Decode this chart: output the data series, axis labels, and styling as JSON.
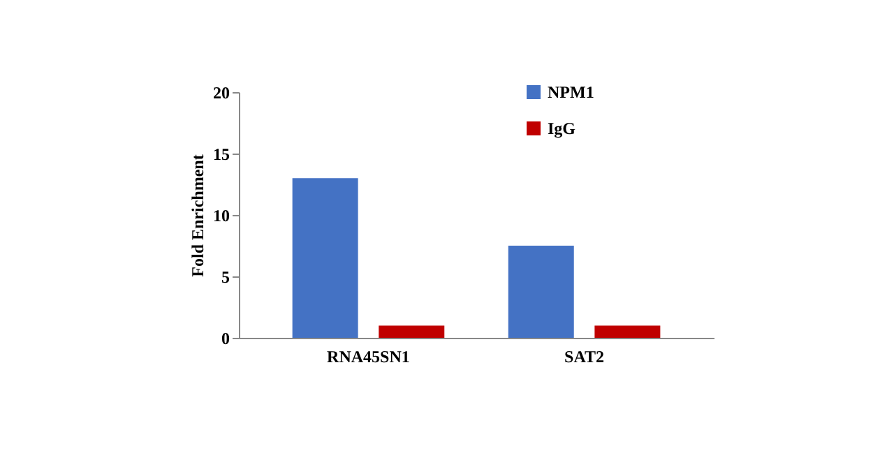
{
  "chart_data": {
    "type": "bar",
    "ylabel": "Fold Enrichment",
    "categories": [
      "RNA45SN1",
      "SAT2"
    ],
    "series": [
      {
        "name": "NPM1",
        "color": "#4472c4",
        "values": [
          13,
          7.5
        ]
      },
      {
        "name": "IgG",
        "color": "#c00000",
        "values": [
          1,
          1
        ]
      }
    ],
    "ylim": [
      0,
      20
    ],
    "yticks": [
      0,
      5,
      10,
      15,
      20
    ],
    "grid": false,
    "legend": "top right"
  }
}
